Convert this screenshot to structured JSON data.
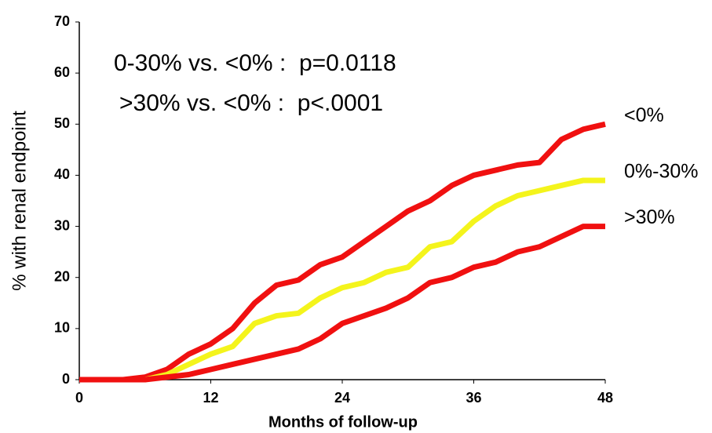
{
  "chart_data": {
    "type": "line",
    "xlabel": "Months of follow-up",
    "ylabel": "% with renal endpoint",
    "annotations": [
      "0-30% vs. <0% :  p=0.0118",
      ">30% vs. <0% :  p<.0001"
    ],
    "x": [
      0,
      2,
      4,
      6,
      8,
      10,
      12,
      14,
      16,
      18,
      20,
      22,
      24,
      26,
      28,
      30,
      32,
      34,
      36,
      38,
      40,
      42,
      44,
      46,
      48
    ],
    "series": [
      {
        "name": "<0%",
        "color": "#f01010",
        "values": [
          0,
          0,
          0,
          0.5,
          2,
          5,
          7,
          10,
          15,
          18.5,
          19.5,
          22.5,
          24,
          27,
          30,
          33,
          35,
          38,
          40,
          41,
          42,
          42.5,
          47,
          49,
          50
        ]
      },
      {
        "name": "0%-30%",
        "color": "#f4f41c",
        "values": [
          0,
          0,
          0,
          0,
          1,
          3,
          5,
          6.5,
          11,
          12.5,
          13,
          16,
          18,
          19,
          21,
          22,
          26,
          27,
          31,
          34,
          36,
          37,
          38,
          39,
          39
        ]
      },
      {
        "name": ">30%",
        "color": "#f01010",
        "values": [
          0,
          0,
          0,
          0,
          0.5,
          1,
          2,
          3,
          4,
          5,
          6,
          8,
          11,
          12.5,
          14,
          16,
          19,
          20,
          22,
          23,
          25,
          26,
          28,
          30,
          30
        ]
      }
    ],
    "xlim": [
      0,
      48
    ],
    "xticks": [
      0,
      12,
      24,
      36,
      48
    ],
    "ylim": [
      0,
      70
    ],
    "yticks": [
      0,
      10,
      20,
      30,
      40,
      50,
      60,
      70
    ],
    "grid": false
  }
}
